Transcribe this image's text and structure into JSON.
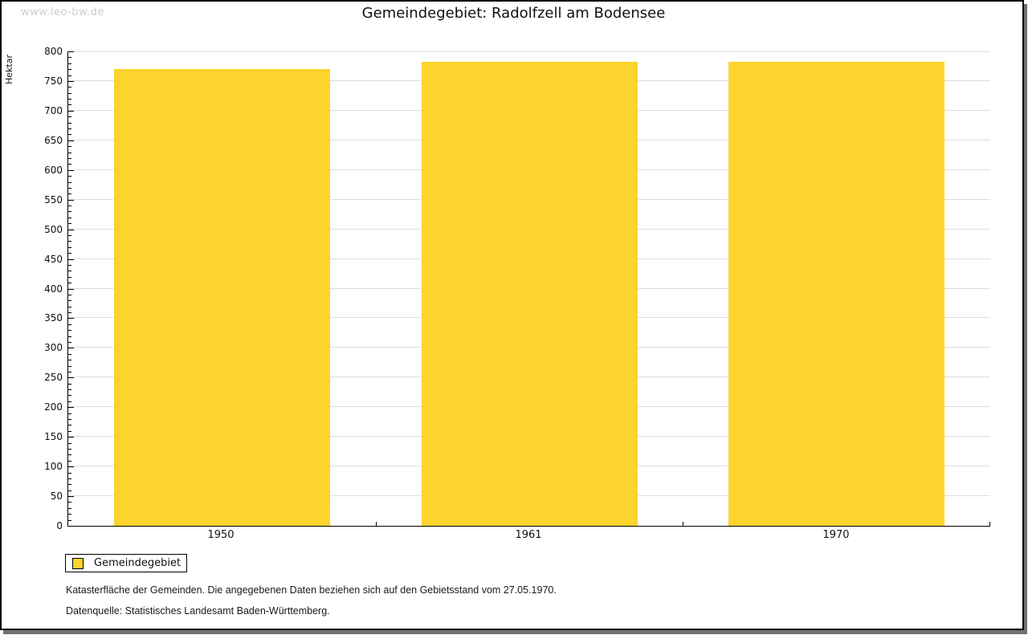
{
  "watermark": "www.leo-bw.de",
  "chart_data": {
    "type": "bar",
    "title": "Gemeindegebiet: Radolfzell am Bodensee",
    "xlabel": "",
    "ylabel": "Hektar",
    "categories": [
      "1950",
      "1961",
      "1970"
    ],
    "series": [
      {
        "name": "Gemeindegebiet",
        "values": [
          770,
          782,
          782
        ],
        "color": "#FCD42D"
      }
    ],
    "ylim": [
      0,
      800
    ],
    "ytick_major": 50,
    "ytick_minor": 10,
    "grid": "horizontal-major-only",
    "legend_position": "bottom-left"
  },
  "legend": {
    "label": "Gemeindegebiet",
    "swatch_color": "#FCD42D"
  },
  "footnotes": [
    "Katasterfläche der Gemeinden. Die angegebenen Daten beziehen sich auf den Gebietsstand vom 27.05.1970.",
    "Datenquelle: Statistisches Landesamt Baden-Württemberg."
  ],
  "colors": {
    "bar": "#FCD42D",
    "grid": "#DDDDDD",
    "axis": "#000000",
    "watermark": "#CCCCCC",
    "shadow": "#707070",
    "background": "#FFFFFF"
  }
}
